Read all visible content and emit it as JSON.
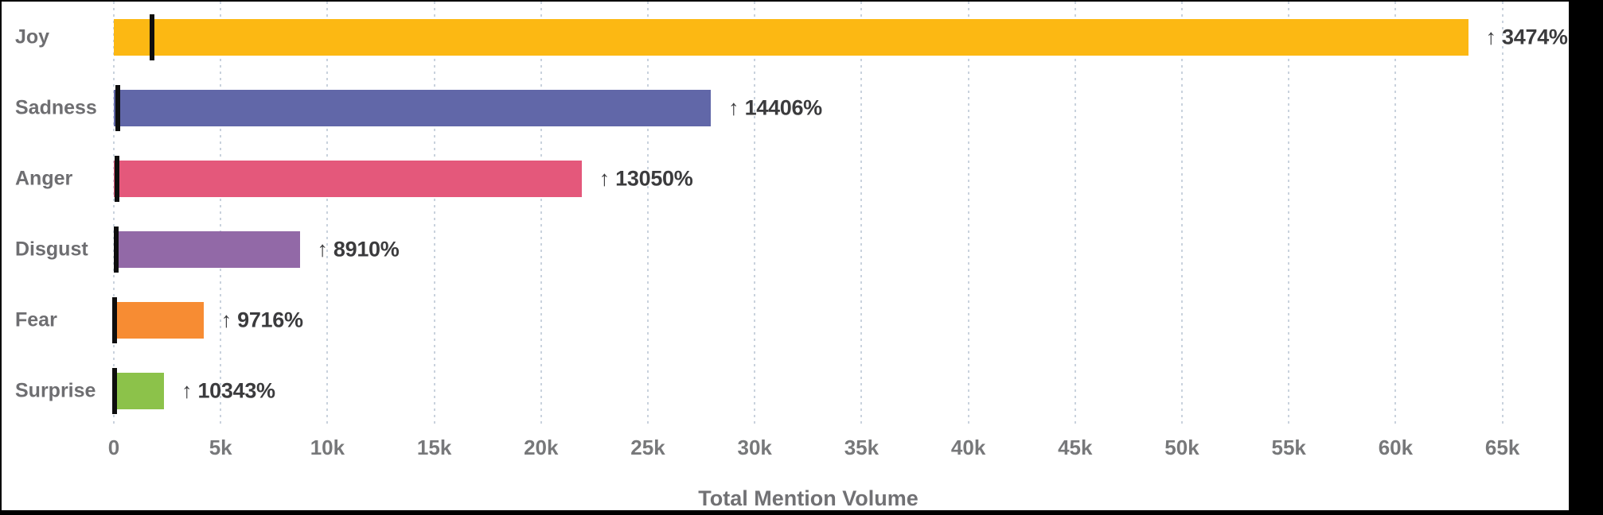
{
  "chart_data": {
    "type": "bar",
    "orientation": "horizontal",
    "categories": [
      "Joy",
      "Sadness",
      "Anger",
      "Disgust",
      "Fear",
      "Surprise"
    ],
    "values": [
      63400,
      27950,
      21900,
      8700,
      4200,
      2350
    ],
    "previous_period_values": [
      1775,
      192,
      166,
      97,
      43,
      23
    ],
    "change_pct": [
      3474,
      14406,
      13050,
      8910,
      9716,
      10343
    ],
    "change_labels": [
      "↑ 3474%",
      "↑ 14406%",
      "↑ 13050%",
      "↑ 8910%",
      "↑ 9716%",
      "↑ 10343%"
    ],
    "arrow_icon": "↑",
    "bar_colors": [
      "#FCB813",
      "#6167A8",
      "#E4587B",
      "#9269A7",
      "#F78C33",
      "#8CC24A"
    ],
    "marker_color": "#0E0E0E",
    "xlabel": "Total Mention Volume",
    "xlim": [
      0,
      65000
    ],
    "xtick_step": 5000,
    "xtick_labels": [
      "0",
      "5k",
      "10k",
      "15k",
      "20k",
      "25k",
      "30k",
      "35k",
      "40k",
      "45k",
      "50k",
      "55k",
      "60k",
      "65k"
    ],
    "grid": "vertical dotted lines",
    "legend": "none"
  },
  "ui_colors": {
    "frame_border": "#000000",
    "plot_background": "#FFFFFF",
    "gridline": "#C9D2DD",
    "category_label": "#6E6E71",
    "change_label": "#3B3B3D",
    "tick_label": "#77787A",
    "axis_title": "#717174"
  }
}
